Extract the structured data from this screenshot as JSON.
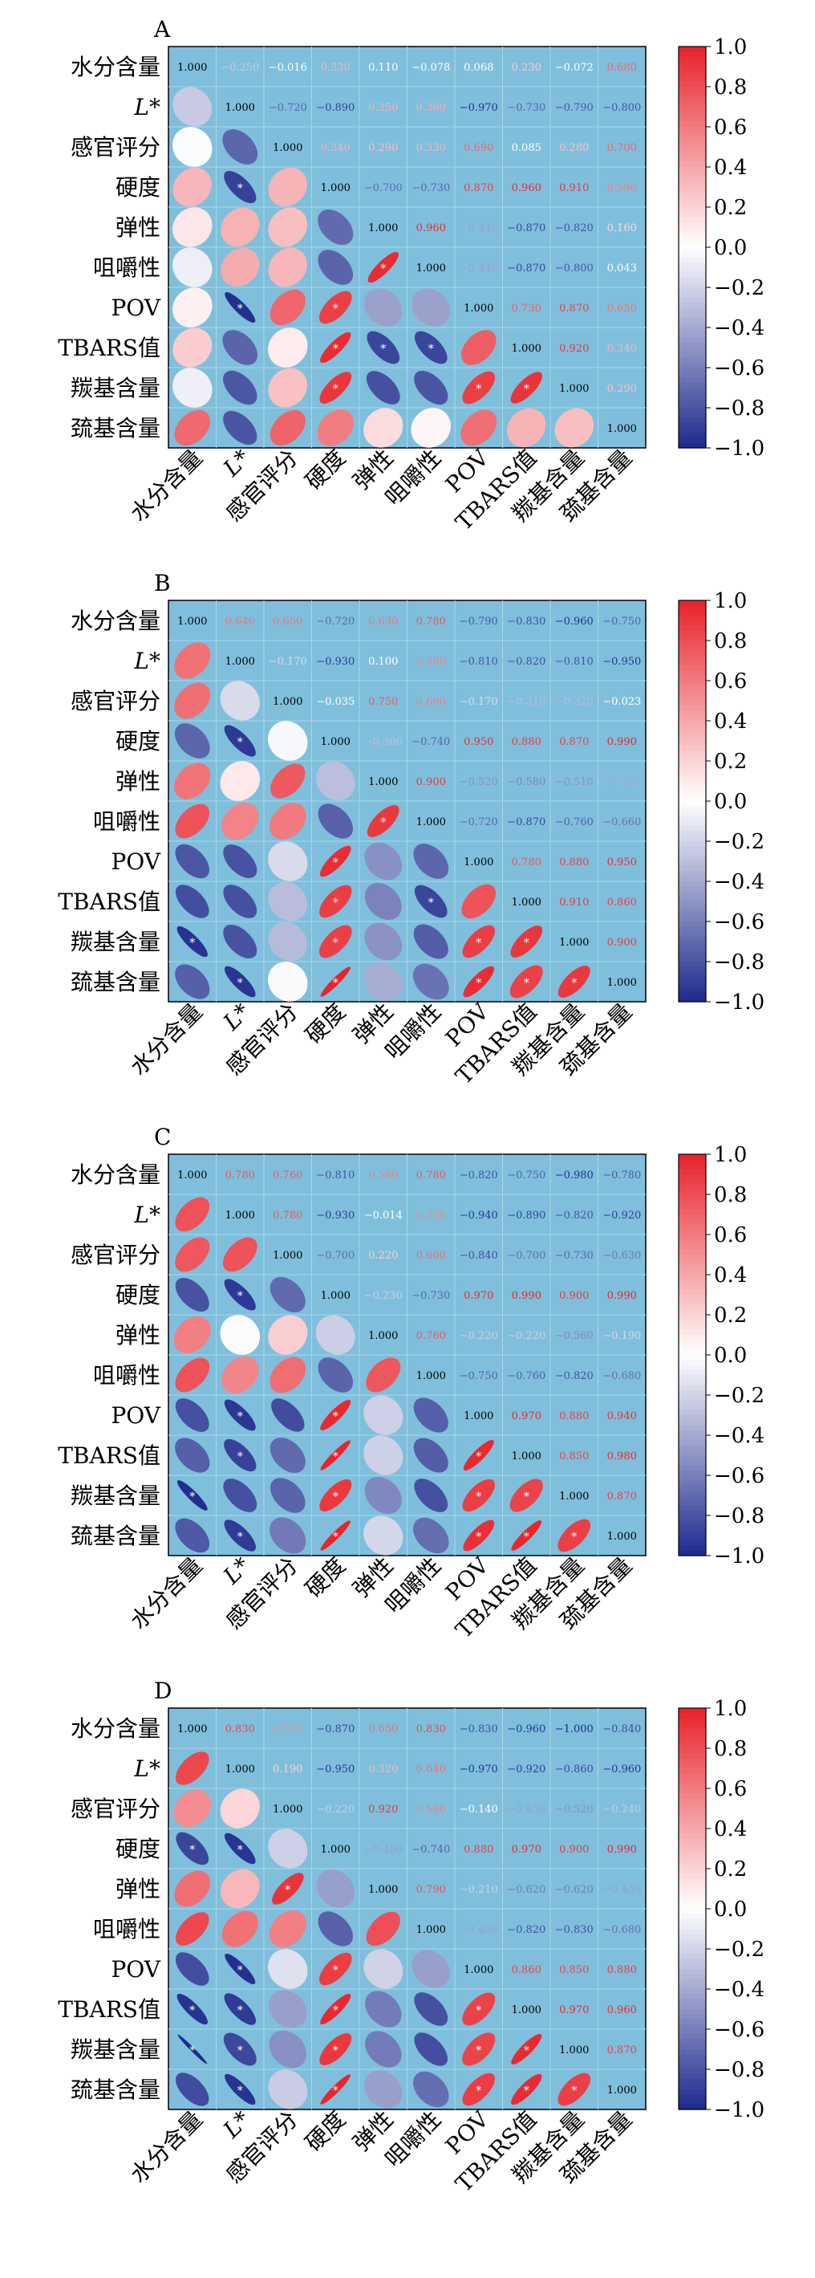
{
  "chart_data": [
    {
      "type": "heatmap",
      "panel_label": "A",
      "variables": [
        "水分含量",
        "L*",
        "感官评分",
        "硬度",
        "弹性",
        "咀嚼性",
        "POV",
        "TBARS值",
        "羰基含量",
        "巯基含量"
      ],
      "matrix": [
        [
          1.0,
          -0.25,
          -0.016,
          0.33,
          0.11,
          -0.078,
          0.068,
          0.23,
          -0.072,
          0.68
        ],
        [
          -0.25,
          1.0,
          -0.72,
          -0.89,
          0.35,
          0.38,
          -0.97,
          -0.73,
          -0.79,
          -0.8
        ],
        [
          -0.016,
          -0.72,
          1.0,
          0.34,
          0.29,
          0.33,
          0.69,
          0.085,
          0.28,
          0.7
        ],
        [
          0.33,
          -0.89,
          0.34,
          1.0,
          -0.7,
          -0.73,
          0.87,
          0.96,
          0.91,
          0.59
        ],
        [
          0.11,
          0.35,
          0.29,
          -0.7,
          1.0,
          0.96,
          -0.44,
          -0.87,
          -0.82,
          0.16
        ],
        [
          -0.078,
          0.38,
          0.33,
          -0.73,
          0.96,
          1.0,
          -0.44,
          -0.87,
          -0.8,
          0.043
        ],
        [
          0.068,
          -0.97,
          0.69,
          0.87,
          -0.44,
          -0.44,
          1.0,
          0.73,
          0.87,
          0.65
        ],
        [
          0.23,
          -0.73,
          0.085,
          0.96,
          -0.87,
          -0.87,
          0.73,
          1.0,
          0.92,
          0.34
        ],
        [
          -0.072,
          -0.79,
          0.28,
          0.91,
          -0.82,
          -0.8,
          0.87,
          0.92,
          1.0,
          0.29
        ],
        [
          0.68,
          -0.8,
          0.7,
          0.59,
          0.16,
          0.043,
          0.65,
          0.34,
          0.29,
          1.0
        ]
      ],
      "colorbar": {
        "min": -1.0,
        "max": 1.0,
        "ticks": [
          "1.0",
          "0.8",
          "0.6",
          "0.4",
          "0.2",
          "0.0",
          "−0.2",
          "−0.4",
          "−0.6",
          "−0.8",
          "−1.0"
        ]
      },
      "lower_triangle": "ellipses",
      "upper_triangle": "values",
      "significance_marker": "*",
      "colors": {
        "panel_bg": "#7fbfdc",
        "grid": "#a8d8ea",
        "positive": "#e8222a",
        "neutral": "#ffffff",
        "negative": "#1d2a8c"
      }
    },
    {
      "type": "heatmap",
      "panel_label": "B",
      "variables": [
        "水分含量",
        "L*",
        "感官评分",
        "硬度",
        "弹性",
        "咀嚼性",
        "POV",
        "TBARS值",
        "羰基含量",
        "巯基含量"
      ],
      "matrix": [
        [
          1.0,
          0.64,
          0.65,
          -0.72,
          0.63,
          0.78,
          -0.79,
          -0.83,
          -0.96,
          -0.75
        ],
        [
          0.64,
          1.0,
          -0.17,
          -0.93,
          0.1,
          0.56,
          -0.81,
          -0.82,
          -0.81,
          -0.95
        ],
        [
          0.65,
          -0.17,
          1.0,
          -0.035,
          0.75,
          0.6,
          -0.17,
          -0.31,
          -0.32,
          -0.023
        ],
        [
          -0.72,
          -0.93,
          -0.035,
          1.0,
          -0.3,
          -0.74,
          0.95,
          0.88,
          0.87,
          0.99
        ],
        [
          0.63,
          0.1,
          0.75,
          -0.3,
          1.0,
          0.9,
          -0.52,
          -0.58,
          -0.51,
          -0.39
        ],
        [
          0.78,
          0.56,
          0.6,
          -0.74,
          0.9,
          1.0,
          -0.72,
          -0.87,
          -0.76,
          -0.66
        ],
        [
          -0.79,
          -0.81,
          -0.17,
          0.95,
          -0.52,
          -0.72,
          1.0,
          0.78,
          0.88,
          0.95
        ],
        [
          -0.83,
          -0.82,
          -0.31,
          0.88,
          -0.58,
          -0.87,
          0.78,
          1.0,
          0.91,
          0.86
        ],
        [
          -0.96,
          -0.81,
          -0.32,
          0.87,
          -0.51,
          -0.76,
          0.88,
          0.91,
          1.0,
          0.9
        ],
        [
          -0.75,
          -0.95,
          -0.023,
          0.99,
          -0.39,
          -0.66,
          0.95,
          0.86,
          0.9,
          1.0
        ]
      ],
      "colorbar": {
        "min": -1.0,
        "max": 1.0,
        "ticks": [
          "1.0",
          "0.8",
          "0.6",
          "0.4",
          "0.2",
          "0.0",
          "−0.2",
          "−0.4",
          "−0.6",
          "−0.8",
          "−1.0"
        ]
      },
      "lower_triangle": "ellipses",
      "upper_triangle": "values",
      "significance_marker": "*",
      "colors": {
        "panel_bg": "#7fbfdc",
        "grid": "#a8d8ea",
        "positive": "#e8222a",
        "neutral": "#ffffff",
        "negative": "#1d2a8c"
      }
    },
    {
      "type": "heatmap",
      "panel_label": "C",
      "variables": [
        "水分含量",
        "L*",
        "感官评分",
        "硬度",
        "弹性",
        "咀嚼性",
        "POV",
        "TBARS值",
        "羰基含量",
        "巯基含量"
      ],
      "matrix": [
        [
          1.0,
          0.78,
          0.76,
          -0.81,
          0.58,
          0.78,
          -0.82,
          -0.75,
          -0.98,
          -0.78
        ],
        [
          0.78,
          1.0,
          0.78,
          -0.93,
          -0.014,
          0.55,
          -0.94,
          -0.89,
          -0.82,
          -0.92
        ],
        [
          0.76,
          0.78,
          1.0,
          -0.7,
          0.22,
          0.66,
          -0.84,
          -0.7,
          -0.73,
          -0.63
        ],
        [
          -0.81,
          -0.93,
          -0.7,
          1.0,
          -0.23,
          -0.73,
          0.97,
          0.99,
          0.9,
          0.99
        ],
        [
          0.58,
          -0.014,
          0.22,
          -0.23,
          1.0,
          0.76,
          -0.22,
          -0.22,
          -0.56,
          -0.19
        ],
        [
          0.78,
          0.55,
          0.66,
          -0.73,
          0.76,
          1.0,
          -0.75,
          -0.76,
          -0.82,
          -0.68
        ],
        [
          -0.82,
          -0.94,
          -0.84,
          0.97,
          -0.22,
          -0.75,
          1.0,
          0.97,
          0.88,
          0.94
        ],
        [
          -0.75,
          -0.89,
          -0.7,
          0.99,
          -0.22,
          -0.76,
          0.97,
          1.0,
          0.85,
          0.98
        ],
        [
          -0.98,
          -0.82,
          -0.73,
          0.9,
          -0.56,
          -0.82,
          0.88,
          0.85,
          1.0,
          0.87
        ],
        [
          -0.78,
          -0.92,
          -0.63,
          0.99,
          -0.19,
          -0.68,
          0.94,
          0.98,
          0.87,
          1.0
        ]
      ],
      "colorbar": {
        "min": -1.0,
        "max": 1.0,
        "ticks": [
          "1.0",
          "0.8",
          "0.6",
          "0.4",
          "0.2",
          "0.0",
          "−0.2",
          "−0.4",
          "−0.6",
          "−0.8",
          "−1.0"
        ]
      },
      "lower_triangle": "ellipses",
      "upper_triangle": "values",
      "significance_marker": "*",
      "colors": {
        "panel_bg": "#7fbfdc",
        "grid": "#a8d8ea",
        "positive": "#e8222a",
        "neutral": "#ffffff",
        "negative": "#1d2a8c"
      }
    },
    {
      "type": "heatmap",
      "panel_label": "D",
      "variables": [
        "水分含量",
        "L*",
        "感官评分",
        "硬度",
        "弹性",
        "咀嚼性",
        "POV",
        "TBARS值",
        "羰基含量",
        "巯基含量"
      ],
      "matrix": [
        [
          1.0,
          0.83,
          0.52,
          -0.87,
          0.65,
          0.83,
          -0.83,
          -0.96,
          -1.0,
          -0.84
        ],
        [
          0.83,
          1.0,
          0.19,
          -0.95,
          0.32,
          0.64,
          -0.97,
          -0.92,
          -0.86,
          -0.96
        ],
        [
          0.52,
          0.19,
          1.0,
          -0.22,
          0.92,
          0.58,
          -0.14,
          -0.45,
          -0.52,
          -0.24
        ],
        [
          -0.87,
          -0.95,
          -0.22,
          1.0,
          -0.45,
          -0.74,
          0.88,
          0.97,
          0.9,
          0.99
        ],
        [
          0.65,
          0.32,
          0.92,
          -0.45,
          1.0,
          0.79,
          -0.21,
          -0.62,
          -0.62,
          -0.45
        ],
        [
          0.83,
          0.64,
          0.58,
          -0.74,
          0.79,
          1.0,
          -0.45,
          -0.82,
          -0.83,
          -0.68
        ],
        [
          -0.83,
          -0.97,
          -0.14,
          0.88,
          -0.21,
          -0.45,
          1.0,
          0.86,
          0.85,
          0.88
        ],
        [
          -0.96,
          -0.92,
          -0.45,
          0.97,
          -0.62,
          -0.82,
          0.86,
          1.0,
          0.97,
          0.96
        ],
        [
          -1.0,
          -0.86,
          -0.52,
          0.9,
          -0.62,
          -0.83,
          0.85,
          0.97,
          1.0,
          0.87
        ],
        [
          -0.84,
          -0.96,
          -0.24,
          0.99,
          -0.45,
          -0.68,
          0.88,
          0.96,
          0.87,
          1.0
        ]
      ],
      "colorbar": {
        "min": -1.0,
        "max": 1.0,
        "ticks": [
          "1.0",
          "0.8",
          "0.6",
          "0.4",
          "0.2",
          "0.0",
          "−0.2",
          "−0.4",
          "−0.6",
          "−0.8",
          "−1.0"
        ]
      },
      "lower_triangle": "ellipses",
      "upper_triangle": "values",
      "significance_marker": "*",
      "colors": {
        "panel_bg": "#7fbfdc",
        "grid": "#a8d8ea",
        "positive": "#e8222a",
        "neutral": "#ffffff",
        "negative": "#1d2a8c"
      }
    }
  ]
}
